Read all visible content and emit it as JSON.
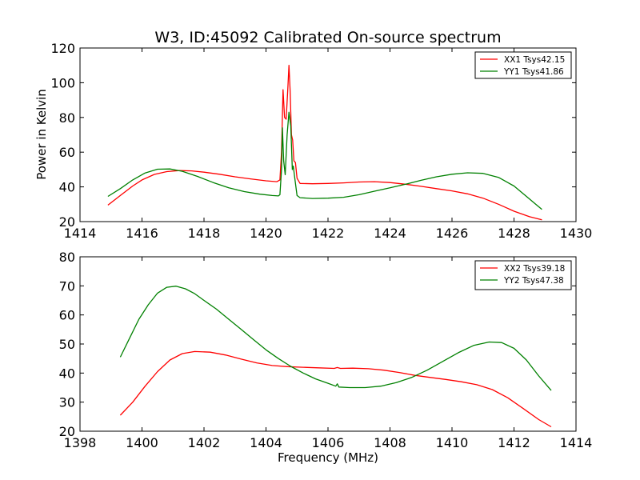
{
  "chart_data": [
    {
      "type": "line",
      "title": "W3, ID:45092 Calibrated On-source spectrum",
      "xlabel": "",
      "ylabel": "Power in Kelvin",
      "xlim": [
        1414,
        1430
      ],
      "ylim": [
        20,
        120
      ],
      "xticks": [
        "1414",
        "1416",
        "1418",
        "1420",
        "1422",
        "1424",
        "1426",
        "1428",
        "1430"
      ],
      "yticks": [
        "20",
        "40",
        "60",
        "80",
        "100",
        "120"
      ],
      "legend": "top-right",
      "series": [
        {
          "name": "XX1 Tsys42.15",
          "color": "#ff0000",
          "points": [
            [
              1414.9,
              29.5
            ],
            [
              1415.3,
              35
            ],
            [
              1415.7,
              40.5
            ],
            [
              1416.0,
              44
            ],
            [
              1416.4,
              47.2
            ],
            [
              1416.8,
              48.8
            ],
            [
              1417.2,
              49.4
            ],
            [
              1417.6,
              49.2
            ],
            [
              1418.0,
              48.5
            ],
            [
              1418.5,
              47.3
            ],
            [
              1419.0,
              45.8
            ],
            [
              1419.5,
              44.6
            ],
            [
              1420.0,
              43.5
            ],
            [
              1420.35,
              43
            ],
            [
              1420.45,
              44
            ],
            [
              1420.5,
              60
            ],
            [
              1420.55,
              96
            ],
            [
              1420.6,
              80
            ],
            [
              1420.65,
              79
            ],
            [
              1420.7,
              95
            ],
            [
              1420.74,
              110
            ],
            [
              1420.78,
              95
            ],
            [
              1420.82,
              70
            ],
            [
              1420.86,
              67
            ],
            [
              1420.9,
              55
            ],
            [
              1420.95,
              54
            ],
            [
              1421.0,
              45
            ],
            [
              1421.1,
              42
            ],
            [
              1421.5,
              41.8
            ],
            [
              1422.0,
              42
            ],
            [
              1422.5,
              42.3
            ],
            [
              1423.0,
              42.8
            ],
            [
              1423.5,
              43
            ],
            [
              1424.0,
              42.5
            ],
            [
              1424.5,
              41.5
            ],
            [
              1425.0,
              40.3
            ],
            [
              1425.5,
              39
            ],
            [
              1426.0,
              37.7
            ],
            [
              1426.5,
              36
            ],
            [
              1427.0,
              33.5
            ],
            [
              1427.5,
              30
            ],
            [
              1428.0,
              26
            ],
            [
              1428.5,
              22.8
            ],
            [
              1428.9,
              21
            ]
          ]
        },
        {
          "name": "YY1 Tsys41.86",
          "color": "#008000",
          "points": [
            [
              1414.9,
              34.5
            ],
            [
              1415.3,
              39
            ],
            [
              1415.7,
              44
            ],
            [
              1416.1,
              48
            ],
            [
              1416.5,
              50.2
            ],
            [
              1416.9,
              50.3
            ],
            [
              1417.3,
              49
            ],
            [
              1417.8,
              46
            ],
            [
              1418.3,
              42.5
            ],
            [
              1418.8,
              39.5
            ],
            [
              1419.3,
              37.3
            ],
            [
              1419.8,
              35.8
            ],
            [
              1420.2,
              35
            ],
            [
              1420.4,
              34.8
            ],
            [
              1420.45,
              35.5
            ],
            [
              1420.5,
              50
            ],
            [
              1420.53,
              74
            ],
            [
              1420.57,
              55
            ],
            [
              1420.62,
              47
            ],
            [
              1420.68,
              70
            ],
            [
              1420.74,
              83
            ],
            [
              1420.8,
              75
            ],
            [
              1420.85,
              50
            ],
            [
              1420.88,
              52
            ],
            [
              1420.93,
              45
            ],
            [
              1421.0,
              35
            ],
            [
              1421.1,
              33.8
            ],
            [
              1421.5,
              33.3
            ],
            [
              1422.0,
              33.5
            ],
            [
              1422.5,
              34
            ],
            [
              1423.0,
              35.5
            ],
            [
              1423.5,
              37.5
            ],
            [
              1424.0,
              39.5
            ],
            [
              1424.5,
              41.5
            ],
            [
              1425.0,
              43.8
            ],
            [
              1425.5,
              45.8
            ],
            [
              1426.0,
              47.3
            ],
            [
              1426.5,
              48.1
            ],
            [
              1427.0,
              47.8
            ],
            [
              1427.5,
              45.5
            ],
            [
              1428.0,
              40.5
            ],
            [
              1428.5,
              33
            ],
            [
              1428.9,
              27
            ]
          ]
        }
      ]
    },
    {
      "type": "line",
      "title": "",
      "xlabel": "Frequency (MHz)",
      "ylabel": "",
      "xlim": [
        1398,
        1414
      ],
      "ylim": [
        20,
        80
      ],
      "xticks": [
        "1398",
        "1400",
        "1402",
        "1404",
        "1406",
        "1408",
        "1410",
        "1412",
        "1414"
      ],
      "yticks": [
        "20",
        "30",
        "40",
        "50",
        "60",
        "70",
        "80"
      ],
      "legend": "top-right",
      "series": [
        {
          "name": "XX2 Tsys39.18",
          "color": "#ff0000",
          "points": [
            [
              1399.3,
              25.5
            ],
            [
              1399.7,
              30
            ],
            [
              1400.1,
              35.5
            ],
            [
              1400.5,
              40.5
            ],
            [
              1400.9,
              44.5
            ],
            [
              1401.3,
              46.7
            ],
            [
              1401.7,
              47.4
            ],
            [
              1402.2,
              47.2
            ],
            [
              1402.7,
              46.2
            ],
            [
              1403.2,
              44.8
            ],
            [
              1403.7,
              43.5
            ],
            [
              1404.2,
              42.6
            ],
            [
              1404.7,
              42.2
            ],
            [
              1405.2,
              42
            ],
            [
              1405.7,
              41.8
            ],
            [
              1406.2,
              41.6
            ],
            [
              1406.3,
              41.9
            ],
            [
              1406.4,
              41.6
            ],
            [
              1406.8,
              41.7
            ],
            [
              1407.3,
              41.5
            ],
            [
              1407.8,
              41
            ],
            [
              1408.3,
              40.2
            ],
            [
              1408.8,
              39.2
            ],
            [
              1409.3,
              38.5
            ],
            [
              1409.8,
              37.8
            ],
            [
              1410.3,
              37
            ],
            [
              1410.8,
              36
            ],
            [
              1411.3,
              34.3
            ],
            [
              1411.8,
              31.5
            ],
            [
              1412.3,
              27.8
            ],
            [
              1412.8,
              24
            ],
            [
              1413.2,
              21.5
            ]
          ]
        },
        {
          "name": "YY2 Tsys47.38",
          "color": "#008000",
          "points": [
            [
              1399.3,
              45.5
            ],
            [
              1399.6,
              52
            ],
            [
              1399.9,
              58.5
            ],
            [
              1400.2,
              63.5
            ],
            [
              1400.5,
              67.5
            ],
            [
              1400.8,
              69.5
            ],
            [
              1401.1,
              69.9
            ],
            [
              1401.4,
              69
            ],
            [
              1401.7,
              67.3
            ],
            [
              1402.0,
              65
            ],
            [
              1402.4,
              62
            ],
            [
              1402.8,
              58.5
            ],
            [
              1403.2,
              55
            ],
            [
              1403.6,
              51.5
            ],
            [
              1404.0,
              48
            ],
            [
              1404.4,
              45
            ],
            [
              1404.8,
              42.3
            ],
            [
              1405.2,
              40
            ],
            [
              1405.6,
              38
            ],
            [
              1406.0,
              36.5
            ],
            [
              1406.25,
              35.5
            ],
            [
              1406.3,
              36.3
            ],
            [
              1406.35,
              35.2
            ],
            [
              1406.7,
              35
            ],
            [
              1407.2,
              35
            ],
            [
              1407.7,
              35.5
            ],
            [
              1408.2,
              36.7
            ],
            [
              1408.7,
              38.5
            ],
            [
              1409.2,
              41
            ],
            [
              1409.7,
              44
            ],
            [
              1410.2,
              47
            ],
            [
              1410.7,
              49.5
            ],
            [
              1411.2,
              50.7
            ],
            [
              1411.6,
              50.5
            ],
            [
              1412.0,
              48.5
            ],
            [
              1412.4,
              44.5
            ],
            [
              1412.8,
              39
            ],
            [
              1413.2,
              34
            ]
          ]
        }
      ]
    }
  ]
}
